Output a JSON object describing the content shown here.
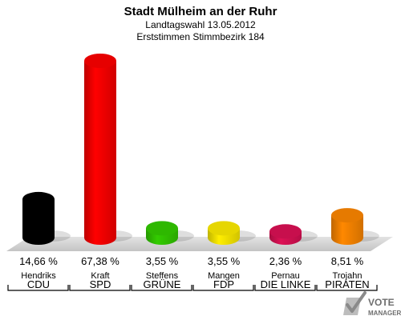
{
  "chart_data": {
    "type": "bar",
    "title": "Stadt Mülheim an der Ruhr",
    "subtitle_1": "Landtagswahl 13.05.2012",
    "subtitle_2": "Erststimmen Stimmbezirk 184",
    "ylim": [
      0,
      70
    ],
    "grid": false,
    "bars": [
      {
        "candidate": "Hendriks",
        "party": "CDU",
        "value": 14.66,
        "label": "14,66 %",
        "color": "#000000"
      },
      {
        "candidate": "Kraft",
        "party": "SPD",
        "value": 67.38,
        "label": "67,38 %",
        "color": "#ff0000"
      },
      {
        "candidate": "Steffens",
        "party": "GRÜNE",
        "value": 3.55,
        "label": "3,55 %",
        "color": "#33cc00"
      },
      {
        "candidate": "Mangen",
        "party": "FDP",
        "value": 3.55,
        "label": "3,55 %",
        "color": "#ffee00"
      },
      {
        "candidate": "Pernau",
        "party": "DIE LINKE",
        "value": 2.36,
        "label": "2,36 %",
        "color": "#dd1155"
      },
      {
        "candidate": "Trojahn",
        "party": "PIRATEN",
        "value": 8.51,
        "label": "8,51 %",
        "color": "#ff8800"
      }
    ]
  },
  "logo": {
    "line1": "VOTE",
    "line2": "MANAGER"
  }
}
